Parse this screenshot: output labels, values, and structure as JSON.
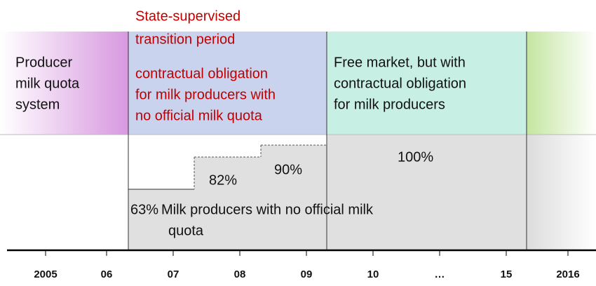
{
  "phases": {
    "quota": {
      "lines": [
        "Producer",
        "milk quota",
        "system"
      ]
    },
    "transition": {
      "title": [
        "State-supervised",
        "transition period"
      ],
      "lines": [
        "contractual obligation",
        "for milk producers with",
        "no official milk quota"
      ]
    },
    "free": {
      "lines": [
        "Free market, but with",
        "contractual obligation",
        "for milk producers"
      ]
    }
  },
  "steps": [
    {
      "label": "63%",
      "note": [
        "Milk producers with no official milk",
        "quota"
      ]
    },
    {
      "label": "82%"
    },
    {
      "label": "90%"
    },
    {
      "label": "100%"
    }
  ],
  "years": [
    "2005",
    "06",
    "07",
    "08",
    "09",
    "10",
    "…",
    "15",
    "2016"
  ]
}
